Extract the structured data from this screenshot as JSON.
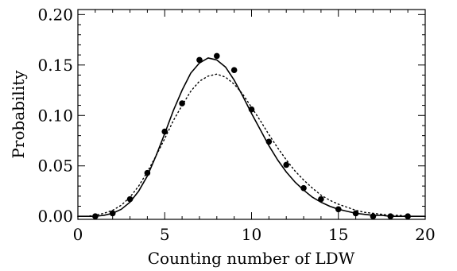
{
  "chart_data": {
    "type": "line",
    "title": "",
    "xlabel": "Counting number of LDW",
    "ylabel": "Probability",
    "xlim": [
      0,
      20
    ],
    "ylim": [
      -0.003,
      0.205
    ],
    "x_ticks": [
      0,
      5,
      10,
      15,
      20
    ],
    "x_tick_labels": [
      "0",
      "5",
      "10",
      "15",
      "20"
    ],
    "y_ticks": [
      0.0,
      0.05,
      0.1,
      0.15,
      0.2
    ],
    "y_tick_labels": [
      "0.00",
      "0.05",
      "0.10",
      "0.15",
      "0.20"
    ],
    "grid": false,
    "legend": "none",
    "series": [
      {
        "style": "markers-filled-circle",
        "color": "#000000",
        "x": [
          1,
          2,
          3,
          4,
          5,
          6,
          7,
          8,
          9,
          10,
          11,
          12,
          13,
          14,
          15,
          16,
          17,
          18,
          19
        ],
        "y": [
          0.0,
          0.003,
          0.017,
          0.043,
          0.084,
          0.112,
          0.155,
          0.159,
          0.145,
          0.106,
          0.074,
          0.051,
          0.028,
          0.017,
          0.007,
          0.003,
          0.0,
          0.0,
          0.0
        ]
      },
      {
        "style": "solid-line",
        "color": "#000000",
        "x": [
          0,
          0.5,
          1,
          1.5,
          2,
          2.5,
          3,
          3.5,
          4,
          4.5,
          5,
          5.5,
          6,
          6.5,
          7,
          7.5,
          8,
          8.5,
          9,
          9.5,
          10,
          10.5,
          11,
          11.5,
          12,
          12.5,
          13,
          13.5,
          14,
          14.5,
          15,
          15.5,
          16,
          16.5,
          17,
          17.5,
          18,
          18.5,
          19,
          19.5,
          20
        ],
        "y": [
          0.0,
          0.0,
          0.0,
          0.001,
          0.003,
          0.007,
          0.014,
          0.025,
          0.04,
          0.06,
          0.082,
          0.105,
          0.125,
          0.142,
          0.152,
          0.157,
          0.155,
          0.148,
          0.135,
          0.119,
          0.102,
          0.086,
          0.07,
          0.056,
          0.044,
          0.034,
          0.026,
          0.019,
          0.014,
          0.01,
          0.007,
          0.005,
          0.003,
          0.002,
          0.001,
          0.001,
          0.0,
          0.0,
          0.0,
          0.0,
          0.0
        ]
      },
      {
        "style": "dotted-line",
        "color": "#000000",
        "x": [
          0,
          0.5,
          1,
          1.5,
          2,
          2.5,
          3,
          3.5,
          4,
          4.5,
          5,
          5.5,
          6,
          6.5,
          7,
          7.5,
          8,
          8.5,
          9,
          9.5,
          10,
          10.5,
          11,
          11.5,
          12,
          12.5,
          13,
          13.5,
          14,
          14.5,
          15,
          15.5,
          16,
          16.5,
          17,
          17.5,
          18,
          18.5,
          19,
          19.5,
          20
        ],
        "y": [
          0.0,
          0.0,
          0.001,
          0.003,
          0.006,
          0.011,
          0.019,
          0.03,
          0.044,
          0.06,
          0.077,
          0.095,
          0.11,
          0.124,
          0.134,
          0.139,
          0.141,
          0.138,
          0.131,
          0.121,
          0.108,
          0.095,
          0.081,
          0.068,
          0.056,
          0.045,
          0.036,
          0.028,
          0.021,
          0.016,
          0.012,
          0.009,
          0.006,
          0.004,
          0.003,
          0.002,
          0.001,
          0.001,
          0.0,
          0.0,
          0.0
        ]
      }
    ]
  }
}
